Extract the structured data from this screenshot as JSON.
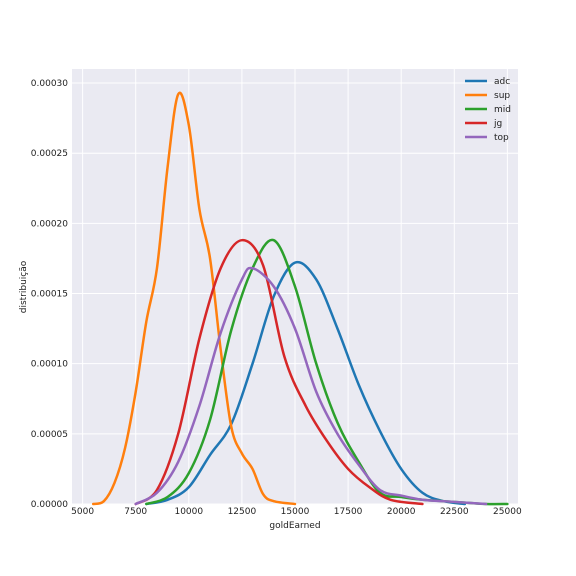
{
  "chart_data": {
    "type": "line",
    "title": "",
    "xlabel": "goldEarned",
    "ylabel": "distribuição",
    "xlim": [
      4500,
      25500
    ],
    "ylim": [
      0,
      0.00031
    ],
    "x_ticks": [
      5000,
      7500,
      10000,
      12500,
      15000,
      17500,
      20000,
      22500,
      25000
    ],
    "y_ticks": [
      0,
      5e-05,
      0.0001,
      0.00015,
      0.0002,
      0.00025,
      0.0003
    ],
    "y_tick_labels": [
      "0.00000",
      "0.00005",
      "0.00010",
      "0.00015",
      "0.00020",
      "0.00025",
      "0.00030"
    ],
    "grid": true,
    "legend_position": "top-right",
    "series": [
      {
        "name": "adc",
        "color": "#1f77b4",
        "points": [
          [
            8000,
            0
          ],
          [
            9000,
            3e-06
          ],
          [
            10000,
            1.2e-05
          ],
          [
            11000,
            3.5e-05
          ],
          [
            12000,
            5.7e-05
          ],
          [
            13000,
            0.0001
          ],
          [
            14000,
            0.000148
          ],
          [
            15000,
            0.000172
          ],
          [
            16000,
            0.00016
          ],
          [
            17000,
            0.000125
          ],
          [
            18000,
            8.5e-05
          ],
          [
            19000,
            5.2e-05
          ],
          [
            20000,
            2.5e-05
          ],
          [
            21000,
            8e-06
          ],
          [
            22000,
            2e-06
          ],
          [
            23000,
            0
          ]
        ]
      },
      {
        "name": "sup",
        "color": "#ff7f0e",
        "points": [
          [
            5500,
            0
          ],
          [
            6000,
            2e-06
          ],
          [
            6500,
            1.5e-05
          ],
          [
            7000,
            4e-05
          ],
          [
            7500,
            8e-05
          ],
          [
            8000,
            0.00013
          ],
          [
            8500,
            0.000168
          ],
          [
            9000,
            0.00024
          ],
          [
            9500,
            0.000292
          ],
          [
            10000,
            0.00027
          ],
          [
            10500,
            0.00021
          ],
          [
            11000,
            0.000175
          ],
          [
            11500,
            0.00011
          ],
          [
            12000,
            5.5e-05
          ],
          [
            12500,
            3.6e-05
          ],
          [
            13000,
            2.5e-05
          ],
          [
            13500,
            7e-06
          ],
          [
            14000,
            2e-06
          ],
          [
            15000,
            0
          ]
        ]
      },
      {
        "name": "mid",
        "color": "#2ca02c",
        "points": [
          [
            8000,
            0
          ],
          [
            9000,
            5e-06
          ],
          [
            10000,
            2.2e-05
          ],
          [
            11000,
            6e-05
          ],
          [
            12000,
            0.000124
          ],
          [
            13000,
            0.000168
          ],
          [
            14000,
            0.000188
          ],
          [
            15000,
            0.000155
          ],
          [
            16000,
            0.0001
          ],
          [
            17000,
            5.8e-05
          ],
          [
            18000,
            3e-05
          ],
          [
            19000,
            8e-06
          ],
          [
            20000,
            5e-06
          ],
          [
            21000,
            3e-06
          ],
          [
            22000,
            2e-06
          ],
          [
            23000,
            1e-06
          ],
          [
            24000,
            0
          ],
          [
            25000,
            0
          ]
        ]
      },
      {
        "name": "jg",
        "color": "#d62728",
        "points": [
          [
            7500,
            0
          ],
          [
            8500,
            1e-05
          ],
          [
            9500,
            5e-05
          ],
          [
            10500,
            0.000118
          ],
          [
            11500,
            0.000168
          ],
          [
            12500,
            0.000188
          ],
          [
            13500,
            0.00017
          ],
          [
            14500,
            0.000105
          ],
          [
            15500,
            7e-05
          ],
          [
            16500,
            4.5e-05
          ],
          [
            17500,
            2.5e-05
          ],
          [
            18500,
            1.2e-05
          ],
          [
            19500,
            3e-06
          ],
          [
            21000,
            0
          ]
        ]
      },
      {
        "name": "top",
        "color": "#9467bd",
        "points": [
          [
            7500,
            0
          ],
          [
            8500,
            8e-06
          ],
          [
            9500,
            3e-05
          ],
          [
            10500,
            7e-05
          ],
          [
            11500,
            0.000122
          ],
          [
            12500,
            0.00016
          ],
          [
            13000,
            0.000168
          ],
          [
            14000,
            0.000155
          ],
          [
            15000,
            0.000125
          ],
          [
            16000,
            8e-05
          ],
          [
            17000,
            5e-05
          ],
          [
            18000,
            2.8e-05
          ],
          [
            19000,
            1e-05
          ],
          [
            20000,
            6e-06
          ],
          [
            21000,
            3e-06
          ],
          [
            22000,
            2e-06
          ],
          [
            23000,
            1e-06
          ],
          [
            24000,
            0
          ]
        ]
      }
    ]
  }
}
